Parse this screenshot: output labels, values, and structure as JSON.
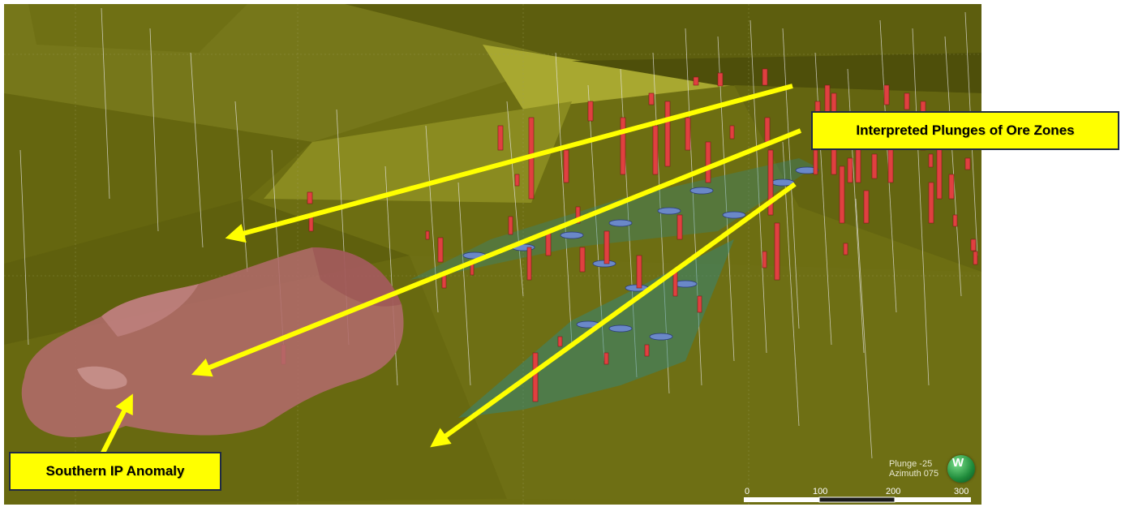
{
  "callouts": {
    "plunges": "Interpreted Plunges of Ore Zones",
    "ip_anomaly": "Southern IP Anomaly"
  },
  "view": {
    "plunge": "Plunge -25",
    "azimuth": "Azimuth 075",
    "compass_letter": "W"
  },
  "scale_bar": {
    "ticks": [
      "0",
      "100",
      "200",
      "300"
    ]
  },
  "colors": {
    "background": "#6b6c12",
    "arrow": "#ffff00",
    "ore_zone": "#e04040",
    "ip_body": "#b06a6a",
    "ore_shell": "#2a8a8a"
  }
}
